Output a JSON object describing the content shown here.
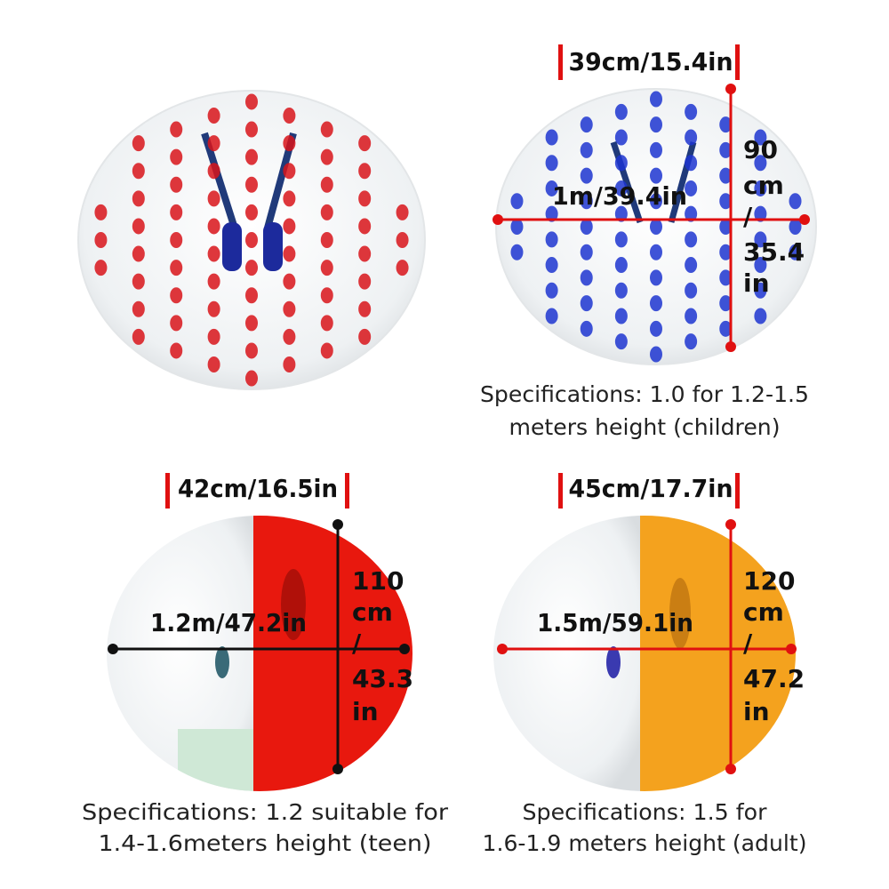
{
  "panels": [
    {
      "depth": "39cm/15.4in",
      "width": "1m/39.4in",
      "height": [
        "90",
        "cm",
        "/",
        "35.4",
        "in"
      ],
      "spec": [
        "Specifications: 1.0 for 1.2-1.5",
        "meters height (children)"
      ]
    },
    {
      "depth": "42cm/16.5in",
      "width": "1.2m/47.2in",
      "height": [
        "110",
        "cm",
        "/",
        "43.3",
        "in"
      ],
      "spec": [
        "Specifications: 1.2 suitable for",
        "1.4-1.6meters height (teen)"
      ]
    },
    {
      "depth": "45cm/17.7in",
      "width": "1.5m/59.1in",
      "height": [
        "120",
        "cm",
        "/",
        "47.2",
        "in"
      ],
      "spec": [
        "Specifications: 1.5 for",
        "1.6-1.9 meters height (adult)"
      ]
    }
  ]
}
